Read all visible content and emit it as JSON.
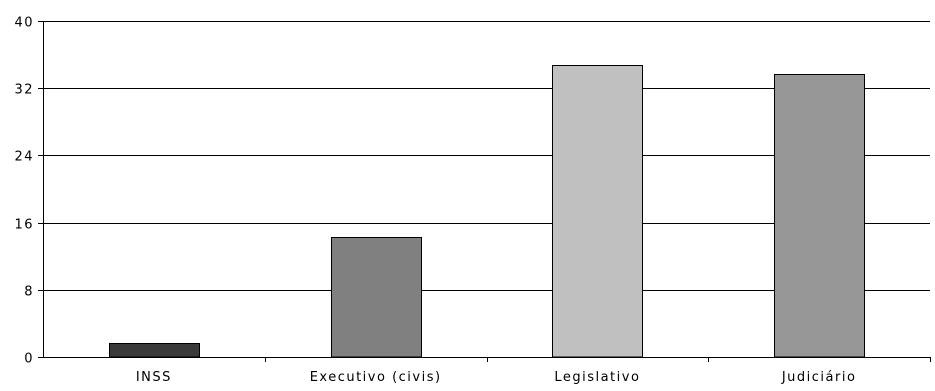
{
  "chart_data": {
    "type": "bar",
    "title": "",
    "xlabel": "",
    "ylabel": "",
    "categories": [
      "INSS",
      "Executivo (civis)",
      "Legislativo",
      "Judiciário"
    ],
    "values": [
      1.7,
      14.3,
      34.8,
      33.7
    ],
    "ylim": [
      0,
      40
    ],
    "yticks": [
      "0",
      "8",
      "16",
      "24",
      "32",
      "40"
    ],
    "grid": true,
    "legend": "none",
    "bar_colors": [
      "#3a3a3a",
      "#808080",
      "#c0c0c0",
      "#969696"
    ]
  }
}
